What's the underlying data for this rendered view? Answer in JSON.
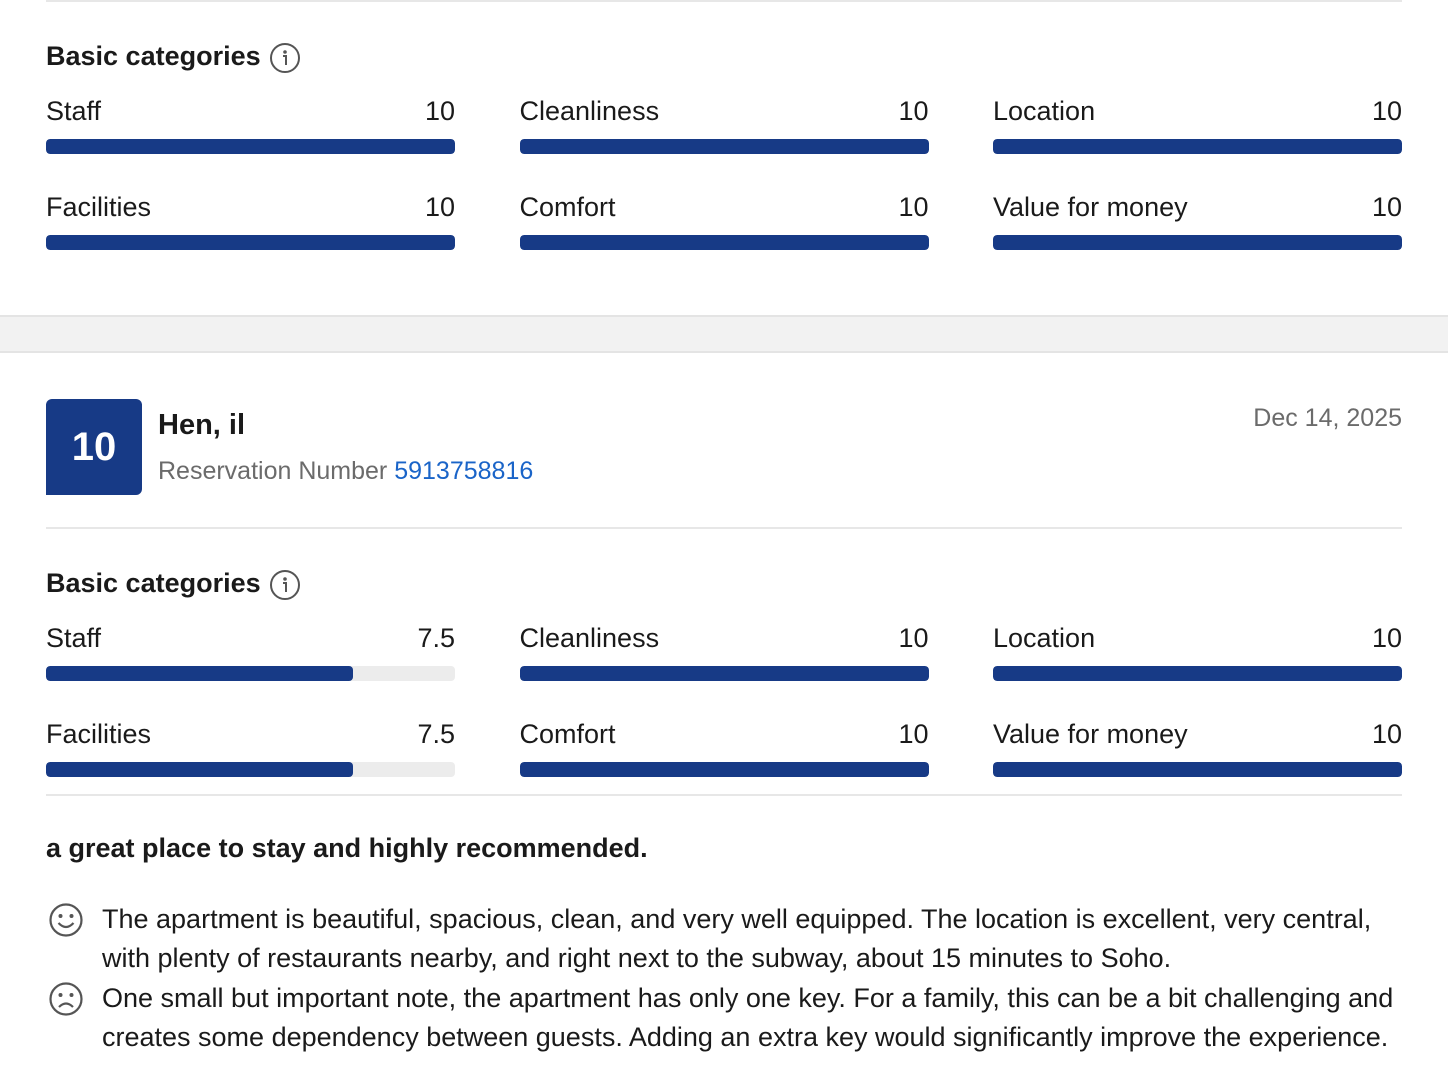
{
  "reviews": [
    {
      "categories_title": "Basic categories",
      "categories": [
        {
          "name": "Staff",
          "score": 10
        },
        {
          "name": "Cleanliness",
          "score": 10
        },
        {
          "name": "Location",
          "score": 10
        },
        {
          "name": "Facilities",
          "score": 10
        },
        {
          "name": "Comfort",
          "score": 10
        },
        {
          "name": "Value for money",
          "score": 10
        }
      ]
    },
    {
      "score": 10,
      "name": "Hen, il",
      "reservation_label": "Reservation Number",
      "reservation_number": "5913758816",
      "date": "Dec 14, 2025",
      "categories_title": "Basic categories",
      "categories": [
        {
          "name": "Staff",
          "score": 7.5
        },
        {
          "name": "Cleanliness",
          "score": 10
        },
        {
          "name": "Location",
          "score": 10
        },
        {
          "name": "Facilities",
          "score": 7.5
        },
        {
          "name": "Comfort",
          "score": 10
        },
        {
          "name": "Value for money",
          "score": 10
        }
      ],
      "title": "a great place to stay and highly recommended.",
      "positive": "The apartment is beautiful, spacious, clean, and very well equipped. The location is excellent, very central, with plenty of restaurants nearby, and right next to the subway, about 15 minutes to Soho.",
      "negative": "One small but important note, the apartment has only one key. For a family, this can be a bit challenging and creates some dependency between guests. Adding an extra key would significantly improve the experience."
    }
  ]
}
